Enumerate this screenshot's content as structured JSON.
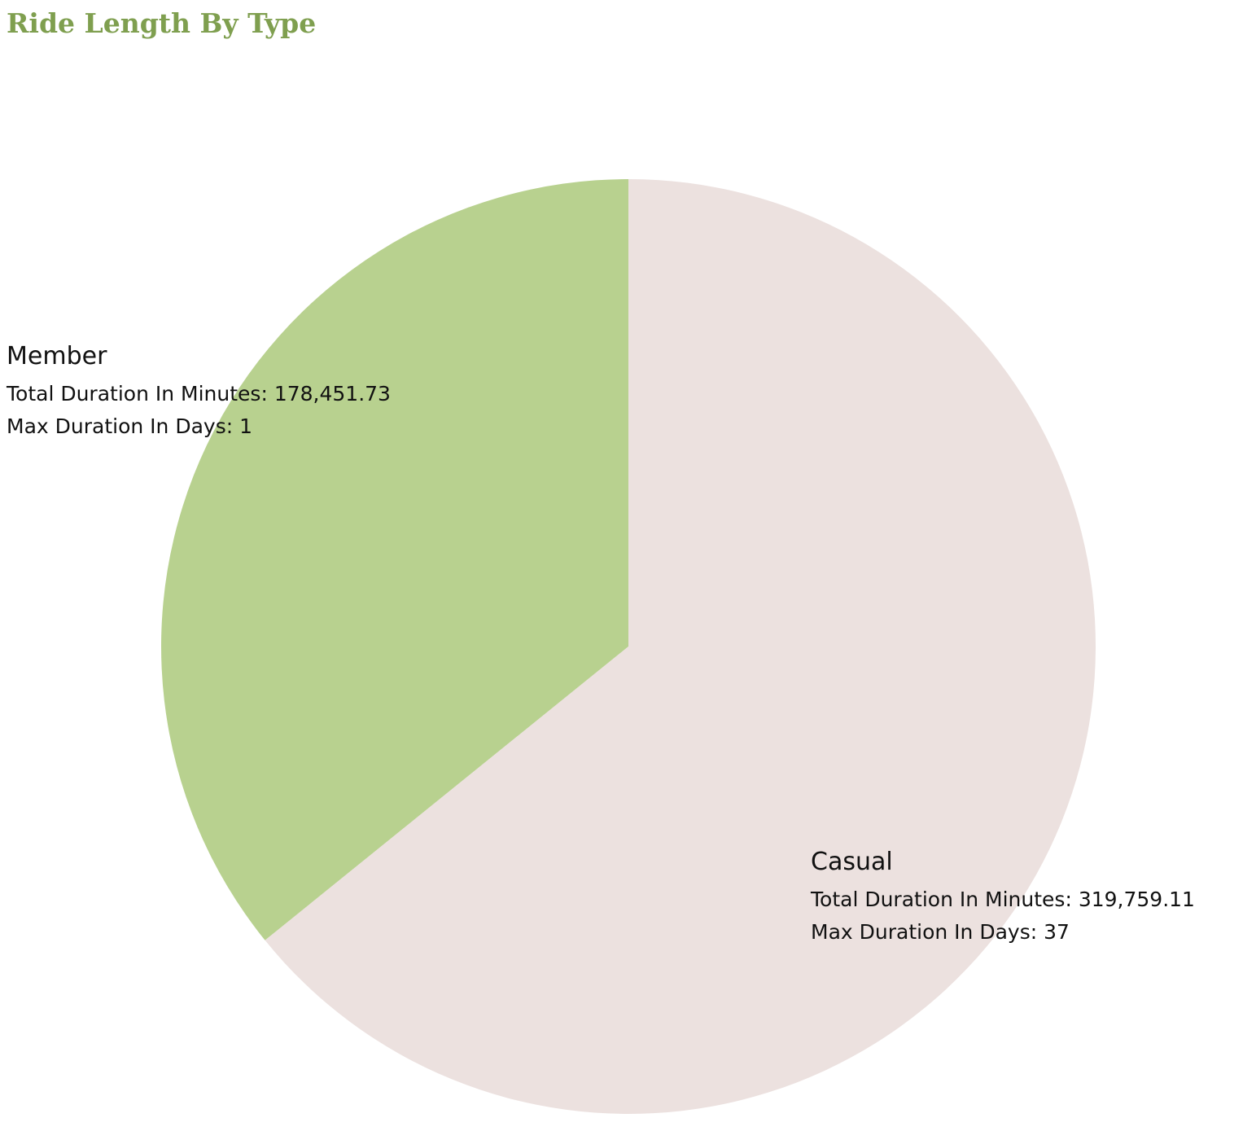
{
  "chart_data": {
    "type": "pie",
    "title": "Ride Length By Type",
    "series": [
      {
        "name": "Member",
        "value": 178451.73,
        "color": "#b8d18f",
        "details": {
          "total_label": "Total Duration In Minutes:",
          "total_value": "178,451.73",
          "max_label": "Max Duration In Days:",
          "max_value": "1"
        }
      },
      {
        "name": "Casual",
        "value": 319759.11,
        "color": "#ece1df",
        "details": {
          "total_label": "Total Duration In Minutes:",
          "total_value": "319,759.11",
          "max_label": "Max Duration In Days:",
          "max_value": "37"
        }
      }
    ],
    "start_angle_deg": 0,
    "direction": "counter-clockwise"
  }
}
